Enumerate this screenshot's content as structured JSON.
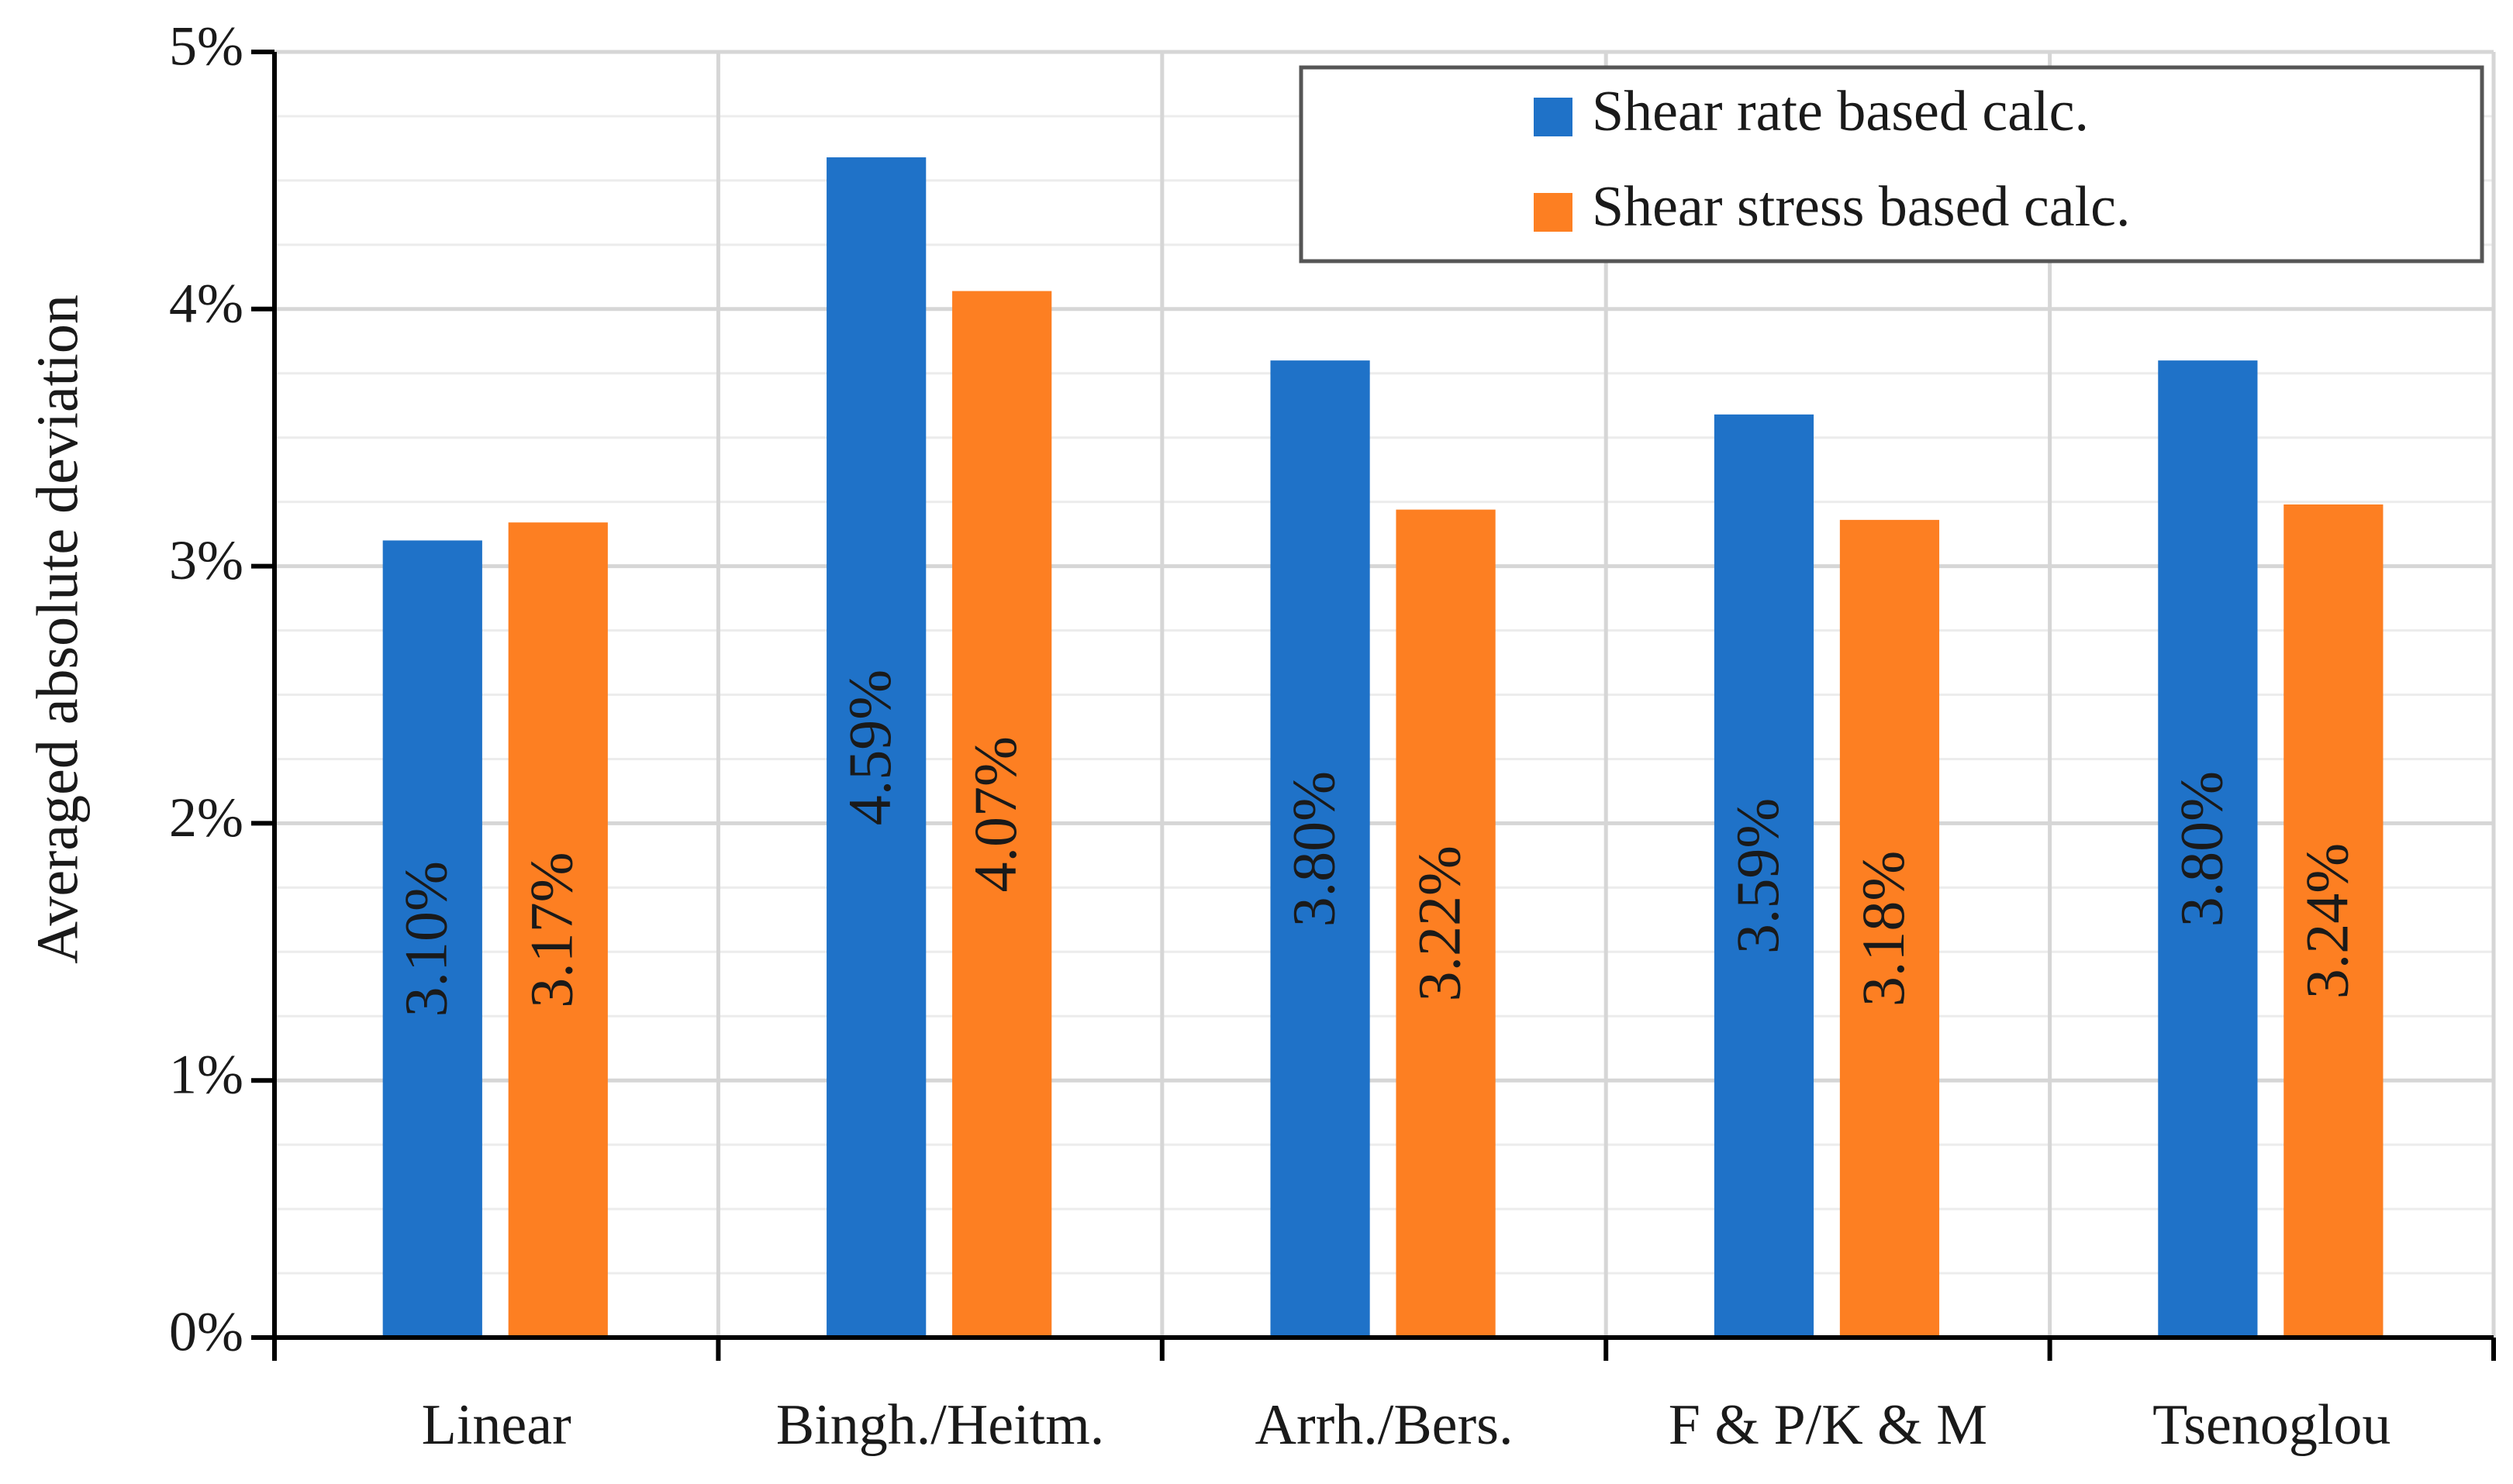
{
  "chart_data": {
    "type": "bar",
    "y_label": "Averaged absolute deviation",
    "categories": [
      "Linear",
      "Bingh./Heitm.",
      "Arrh./Bers.",
      "F & P/K & M",
      "Tsenoglou"
    ],
    "series": [
      {
        "name": "Shear rate based calc.",
        "color": "#1f72c8",
        "values": [
          3.1,
          4.59,
          3.8,
          3.59,
          3.8
        ],
        "value_labels": [
          "3.10%",
          "4.59%",
          "3.80%",
          "3.59%",
          "3.80%"
        ]
      },
      {
        "name": "Shear stress based calc.",
        "color": "#fd7f22",
        "values": [
          3.17,
          4.07,
          3.22,
          3.18,
          3.24
        ],
        "value_labels": [
          "3.17%",
          "4.07%",
          "3.22%",
          "3.18%",
          "3.24%"
        ]
      }
    ],
    "ylim": [
      0,
      5
    ],
    "yticks": [
      {
        "value": 0,
        "label": "0%"
      },
      {
        "value": 1,
        "label": "1%"
      },
      {
        "value": 2,
        "label": "2%"
      },
      {
        "value": 3,
        "label": "3%"
      },
      {
        "value": 4,
        "label": "4%"
      },
      {
        "value": 5,
        "label": "5%"
      }
    ],
    "minor_yticks": [
      0.25,
      0.5,
      0.75,
      1.25,
      1.5,
      1.75,
      2.25,
      2.5,
      2.75,
      3.25,
      3.5,
      3.75,
      4.25,
      4.5,
      4.75
    ],
    "grid": true,
    "legend_position": "top-right"
  }
}
